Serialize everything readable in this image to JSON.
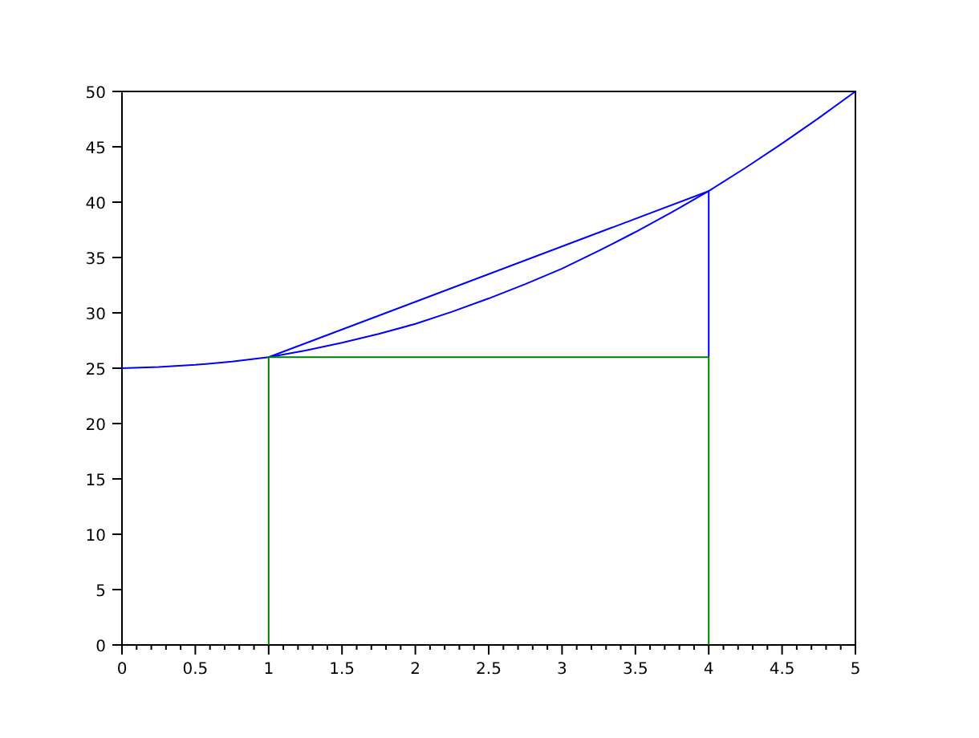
{
  "chart_data": {
    "type": "line",
    "xlim": [
      0,
      5
    ],
    "ylim": [
      0,
      50
    ],
    "xticks": [
      0,
      {
        "value": 0.1,
        "label": null
      },
      {
        "value": 0.2,
        "label": null
      },
      {
        "value": 0.3,
        "label": null
      },
      {
        "value": 0.4,
        "label": null
      },
      0.5,
      {
        "value": 0.6,
        "label": null
      },
      {
        "value": 0.7,
        "label": null
      },
      {
        "value": 0.8,
        "label": null
      },
      {
        "value": 0.9,
        "label": null
      },
      1,
      {
        "value": 1.1,
        "label": null
      },
      {
        "value": 1.2,
        "label": null
      },
      {
        "value": 1.3,
        "label": null
      },
      {
        "value": 1.4,
        "label": null
      },
      1.5,
      {
        "value": 1.6,
        "label": null
      },
      {
        "value": 1.7,
        "label": null
      },
      {
        "value": 1.8,
        "label": null
      },
      {
        "value": 1.9,
        "label": null
      },
      2,
      {
        "value": 2.1,
        "label": null
      },
      {
        "value": 2.2,
        "label": null
      },
      {
        "value": 2.3,
        "label": null
      },
      {
        "value": 2.4,
        "label": null
      },
      2.5,
      {
        "value": 2.6,
        "label": null
      },
      {
        "value": 2.7,
        "label": null
      },
      {
        "value": 2.8,
        "label": null
      },
      {
        "value": 2.9,
        "label": null
      },
      3,
      {
        "value": 3.1,
        "label": null
      },
      {
        "value": 3.2,
        "label": null
      },
      {
        "value": 3.3,
        "label": null
      },
      {
        "value": 3.4,
        "label": null
      },
      3.5,
      {
        "value": 3.6,
        "label": null
      },
      {
        "value": 3.7,
        "label": null
      },
      {
        "value": 3.8,
        "label": null
      },
      {
        "value": 3.9,
        "label": null
      },
      4,
      {
        "value": 4.1,
        "label": null
      },
      {
        "value": 4.2,
        "label": null
      },
      {
        "value": 4.3,
        "label": null
      },
      {
        "value": 4.4,
        "label": null
      },
      4.5,
      {
        "value": 4.6,
        "label": null
      },
      {
        "value": 4.7,
        "label": null
      },
      {
        "value": 4.8,
        "label": null
      },
      {
        "value": 4.9,
        "label": null
      },
      5
    ],
    "yticks": [
      0,
      5,
      10,
      15,
      20,
      25,
      30,
      35,
      40,
      45,
      50
    ],
    "line_style": "solid",
    "series": [
      {
        "color": "#0000ff",
        "x": [
          0,
          0.25,
          0.5,
          0.75,
          1,
          1.25,
          1.5,
          1.75,
          2,
          2.25,
          2.5,
          2.75,
          3,
          3.25,
          3.5,
          3.75,
          4,
          4.25,
          4.5,
          4.75,
          5
        ],
        "values": [
          25,
          25.1,
          25.3,
          25.6,
          26,
          26.6,
          27.3,
          28.1,
          29,
          30.1,
          31.3,
          32.6,
          34,
          35.6,
          37.3,
          39.1,
          41,
          43.1,
          45.3,
          47.6,
          50
        ]
      },
      {
        "color": "#0000ff",
        "x": [
          1,
          4
        ],
        "values": [
          26,
          41
        ]
      },
      {
        "color": "#0000ff",
        "x": [
          4,
          4
        ],
        "values": [
          26,
          41
        ]
      },
      {
        "color": "#008000",
        "x": [
          1,
          1,
          4,
          4
        ],
        "values": [
          0,
          26,
          26,
          0
        ]
      }
    ]
  }
}
